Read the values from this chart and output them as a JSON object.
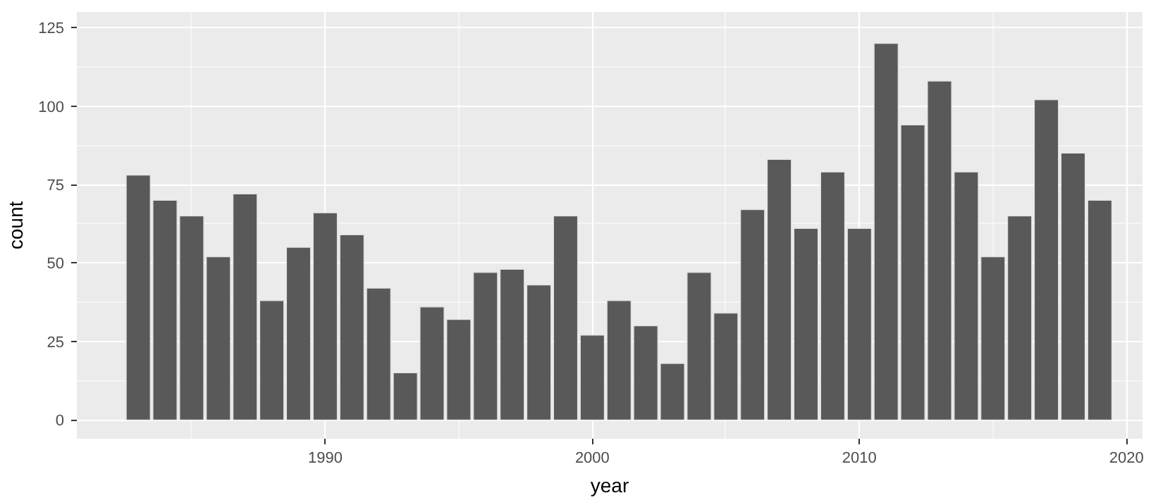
{
  "chart_data": {
    "type": "bar",
    "xlabel": "year",
    "ylabel": "count",
    "x": [
      1983,
      1984,
      1985,
      1986,
      1987,
      1988,
      1989,
      1990,
      1991,
      1992,
      1993,
      1994,
      1995,
      1996,
      1997,
      1998,
      1999,
      2000,
      2001,
      2002,
      2003,
      2004,
      2005,
      2006,
      2007,
      2008,
      2009,
      2010,
      2011,
      2012,
      2013,
      2014,
      2015,
      2016,
      2017,
      2018,
      2019
    ],
    "values": [
      78,
      70,
      65,
      52,
      72,
      38,
      55,
      66,
      59,
      42,
      15,
      36,
      32,
      47,
      48,
      43,
      65,
      27,
      38,
      30,
      18,
      47,
      34,
      67,
      83,
      61,
      79,
      61,
      120,
      94,
      108,
      79,
      52,
      65,
      102,
      85,
      70
    ],
    "color": "#595959",
    "xlim": [
      1980.7,
      2020.6
    ],
    "xticks": [
      1990,
      2000,
      2010,
      2020
    ],
    "ylim": [
      -6,
      130
    ],
    "yticks": [
      0,
      25,
      50,
      75,
      100,
      125
    ],
    "grid": true
  }
}
